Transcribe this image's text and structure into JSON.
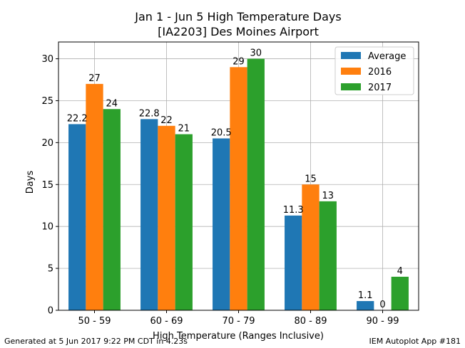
{
  "chart_data": {
    "type": "bar",
    "title": "Jan 1 - Jun 5 High Temperature Days",
    "subtitle": "[IA2203] Des Moines Airport",
    "xlabel": "High Temperature (Ranges Inclusive)",
    "ylabel": "Days",
    "ylim": [
      0,
      32
    ],
    "yticks": [
      0,
      5,
      10,
      15,
      20,
      25,
      30
    ],
    "grid": true,
    "legend_position": "top-right",
    "categories": [
      "50 - 59",
      "60 - 69",
      "70 - 79",
      "80 - 89",
      "90 - 99"
    ],
    "series": [
      {
        "name": "Average",
        "color": "#1f77b4",
        "values": [
          22.2,
          22.8,
          20.5,
          11.3,
          1.1
        ],
        "labels": [
          "22.2",
          "22.8",
          "20.5",
          "11.3",
          "1.1"
        ]
      },
      {
        "name": "2016",
        "color": "#ff7f0e",
        "values": [
          27,
          22,
          29,
          15,
          0
        ],
        "labels": [
          "27",
          "22",
          "29",
          "15",
          "0"
        ]
      },
      {
        "name": "2017",
        "color": "#2ca02c",
        "values": [
          24,
          21,
          30,
          13,
          4
        ],
        "labels": [
          "24",
          "21",
          "30",
          "13",
          "4"
        ]
      }
    ]
  },
  "footer": {
    "left": "Generated at 5 Jun 2017 9:22 PM CDT in 4.23s",
    "right": "IEM Autoplot App #181"
  }
}
